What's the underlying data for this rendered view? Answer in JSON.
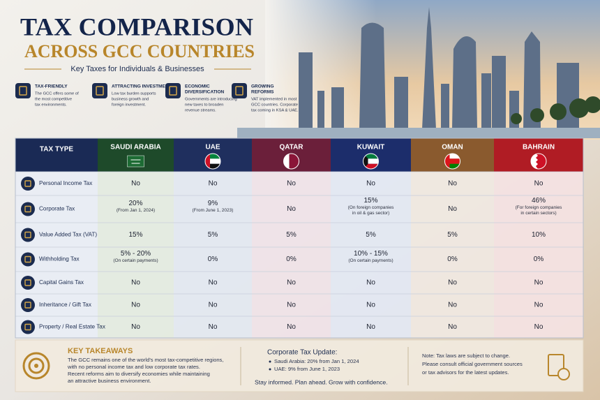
{
  "header": {
    "title": "TAX COMPARISON",
    "subtitle": "ACROSS GCC COUNTRIES",
    "tagline": "Key Taxes for Individuals & Businesses"
  },
  "features": [
    {
      "title": [
        "TAX-FRIENDLY"
      ],
      "text": [
        "The GCC offers some of",
        "the most competitive",
        "tax environments."
      ]
    },
    {
      "title": [
        "ATTRACTING INVESTMENT"
      ],
      "text": [
        "Low tax burden supports",
        "business growth and",
        "foreign investment."
      ]
    },
    {
      "title": [
        "ECONOMIC",
        "DIVERSIFICATION"
      ],
      "text": [
        "Governments are introducing",
        "new taxes to broaden",
        "revenue streams."
      ]
    },
    {
      "title": [
        "GROWING",
        "REFORMS"
      ],
      "text": [
        "VAT implemented in most",
        "GCC countries. Corporate",
        "tax coming in KSA & UAE."
      ]
    }
  ],
  "table": {
    "header": "TAX TYPE",
    "columns": [
      "SAUDI ARABIA",
      "UAE",
      "QATAR",
      "KUWAIT",
      "OMAN",
      "BAHRAIN"
    ],
    "rows": [
      {
        "label": "Personal Income Tax",
        "cells": [
          {
            "text": "No"
          },
          {
            "text": "No"
          },
          {
            "text": "No"
          },
          {
            "text": "No"
          },
          {
            "text": "No"
          },
          {
            "text": "No"
          }
        ]
      },
      {
        "label": "Corporate Tax",
        "cells": [
          {
            "text": "20%",
            "note": [
              "(From Jan 1, 2024)"
            ]
          },
          {
            "text": "9%",
            "note": [
              "(From June 1, 2023)"
            ]
          },
          {
            "text": "No"
          },
          {
            "text": "15%",
            "note": [
              "(On foreign companies",
              "in oil & gas sector)"
            ]
          },
          {
            "text": "No"
          },
          {
            "text": "46%",
            "note": [
              "(For foreign companies",
              "in certain sectors)"
            ]
          }
        ]
      },
      {
        "label": "Value Added Tax (VAT)",
        "cells": [
          {
            "text": "15%"
          },
          {
            "text": "5%"
          },
          {
            "text": "5%"
          },
          {
            "text": "5%"
          },
          {
            "text": "5%"
          },
          {
            "text": "10%"
          }
        ]
      },
      {
        "label": "Withholding Tax",
        "cells": [
          {
            "text": "5% - 20%",
            "note": [
              "(On certain payments)"
            ]
          },
          {
            "text": "0%"
          },
          {
            "text": "0%"
          },
          {
            "text": "10% - 15%",
            "note": [
              "(On certain payments)"
            ]
          },
          {
            "text": "0%"
          },
          {
            "text": "0%"
          }
        ]
      },
      {
        "label": "Capital Gains Tax",
        "cells": [
          {
            "text": "No"
          },
          {
            "text": "No"
          },
          {
            "text": "No"
          },
          {
            "text": "No"
          },
          {
            "text": "No"
          },
          {
            "text": "No"
          }
        ]
      },
      {
        "label": "Inheritance / Gift Tax",
        "cells": [
          {
            "text": "No"
          },
          {
            "text": "No"
          },
          {
            "text": "No"
          },
          {
            "text": "No"
          },
          {
            "text": "No"
          },
          {
            "text": "No"
          }
        ]
      },
      {
        "label": "Property / Real Estate Tax",
        "cells": [
          {
            "text": "No"
          },
          {
            "text": "No"
          },
          {
            "text": "No"
          },
          {
            "text": "No"
          },
          {
            "text": "No"
          },
          {
            "text": "No"
          }
        ]
      }
    ]
  },
  "footer": {
    "takeaways": {
      "title": "KEY TAKEAWAYS",
      "lines": [
        "The GCC remains one of the world's most tax-competitive regions,",
        "with no personal income tax and low corporate tax rates.",
        "Recent reforms aim to diversify economies while maintaining",
        "an attractive business environment."
      ]
    },
    "update": {
      "title": "Corporate Tax Update:",
      "bullets": [
        "Saudi Arabia: 20% from Jan 1, 2024",
        "UAE: 9% from June 1, 2023"
      ],
      "closing": "Stay informed. Plan ahead. Grow with confidence."
    },
    "note": [
      "Note: Tax laws are subject to change.",
      "Please consult official government sources",
      "or tax advisors for the latest updates."
    ]
  }
}
